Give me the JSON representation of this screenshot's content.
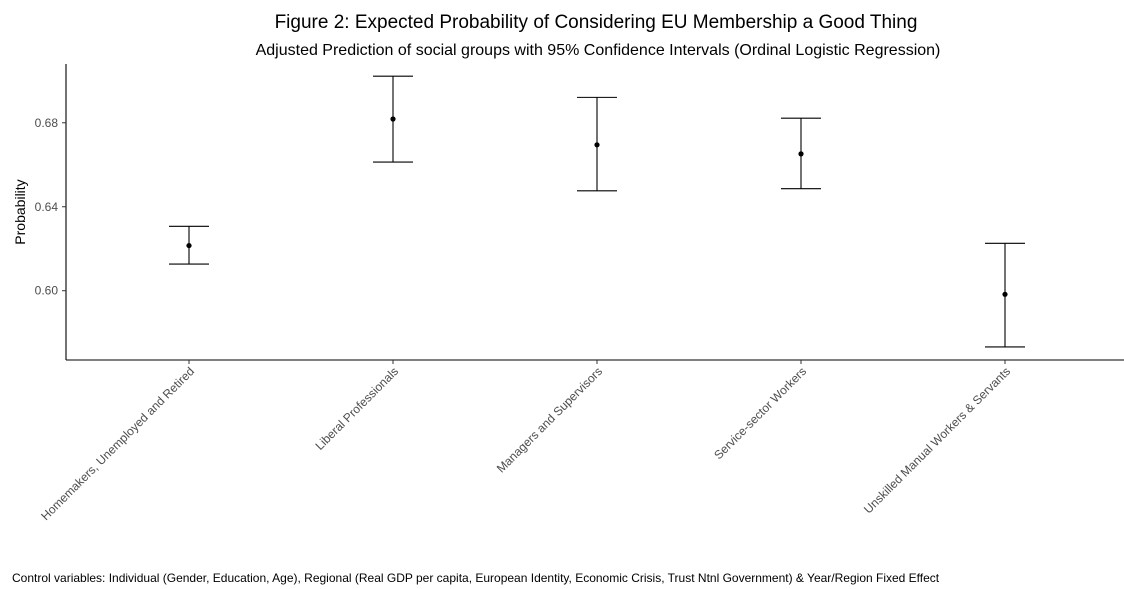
{
  "chart_data": {
    "type": "scatter",
    "title": "Figure 2: Expected Probability of Considering EU Membership a Good Thing",
    "subtitle": "Adjusted Prediction of social groups with 95% Confidence Intervals (Ordinal Logistic Regression)",
    "xlabel": "",
    "ylabel": "Probability",
    "ylim": [
      0.567,
      0.708
    ],
    "y_ticks": [
      0.6,
      0.64,
      0.68
    ],
    "y_tick_labels": [
      "0.60",
      "0.64",
      "0.68"
    ],
    "grid": false,
    "categories": [
      "Homemakers, Unemployed and Retired",
      "Liberal Professionals",
      "Managers and Supervisors",
      "Service-sector Workers",
      "Unskilled Manual Workers & Servants"
    ],
    "values": [
      0.6215,
      0.6818,
      0.6695,
      0.6652,
      0.5983
    ],
    "ci_lower": [
      0.6127,
      0.6613,
      0.6476,
      0.6486,
      0.5732
    ],
    "ci_upper": [
      0.6307,
      0.7022,
      0.6921,
      0.6822,
      0.6226
    ],
    "caption": "Control variables: Individual (Gender, Education, Age), Regional (Real GDP per capita, European Identity, Economic Crisis, Trust Ntnl Government) & Year/Region Fixed Effect"
  }
}
